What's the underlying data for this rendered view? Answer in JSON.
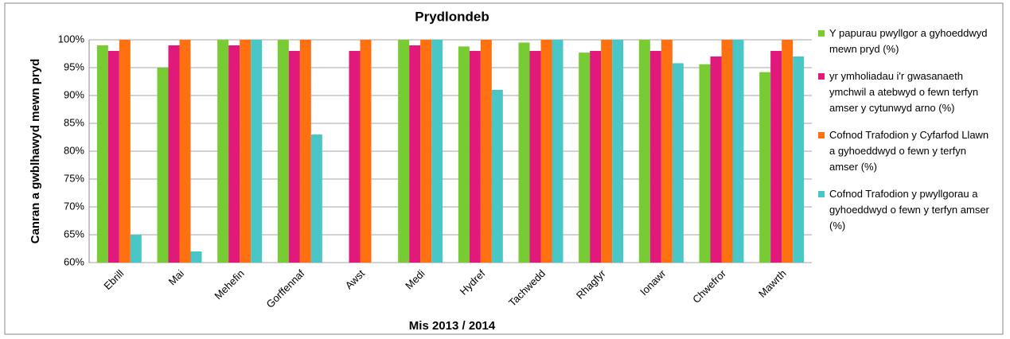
{
  "chart_data": {
    "type": "bar",
    "title": "Prydlondeb",
    "x_label": "Mis 2013 / 2014",
    "y_label": "Canran a gwblhawyd mewn pryd",
    "categories": [
      "Ebrill",
      "Mai",
      "Mehefin",
      "Gorffennaf",
      "Awst",
      "Medi",
      "Hydref",
      "Tachwedd",
      "Rhagfyr",
      "Ionawr",
      "Chwefror",
      "Mawrth"
    ],
    "series": [
      {
        "name": "Y papurau pwyllgor a gyhoeddwyd mewn pryd (%)",
        "color": "#77cc33",
        "values": [
          99,
          95,
          100,
          100,
          60,
          100,
          98.8,
          99.5,
          97.7,
          100,
          95.6,
          94.2
        ]
      },
      {
        "name": "yr ymholiadau i'r gwasanaeth ymchwil a atebwyd o fewn terfyn amser y cytunwyd arno (%)",
        "color": "#e0197a",
        "values": [
          98,
          99,
          99,
          98,
          98,
          99,
          98,
          98,
          98,
          98,
          97,
          98
        ]
      },
      {
        "name": "Cofnod Trafodion y Cyfarfod Llawn a gyhoeddwyd o fewn y terfyn amser (%)",
        "color": "#ff7010",
        "values": [
          100,
          100,
          100,
          100,
          100,
          100,
          100,
          100,
          100,
          100,
          100,
          100
        ]
      },
      {
        "name": "Cofnod Trafodion y pwyllgorau a gyhoeddwyd o fewn y terfyn amser (%)",
        "color": "#4bc6c6",
        "values": [
          65,
          62,
          100,
          83,
          60,
          100,
          91,
          100,
          100,
          95.8,
          100,
          97
        ]
      }
    ],
    "ylim": [
      60,
      100
    ],
    "yticks": [
      {
        "value": 60,
        "label": "60%"
      },
      {
        "value": 65,
        "label": "65%"
      },
      {
        "value": 70,
        "label": "70%"
      },
      {
        "value": 75,
        "label": "75%"
      },
      {
        "value": 80,
        "label": "80%"
      },
      {
        "value": 85,
        "label": "85%"
      },
      {
        "value": 90,
        "label": "90%"
      },
      {
        "value": 95,
        "label": "95%"
      },
      {
        "value": 100,
        "label": "100%"
      }
    ],
    "grid": true,
    "legend": "right"
  }
}
